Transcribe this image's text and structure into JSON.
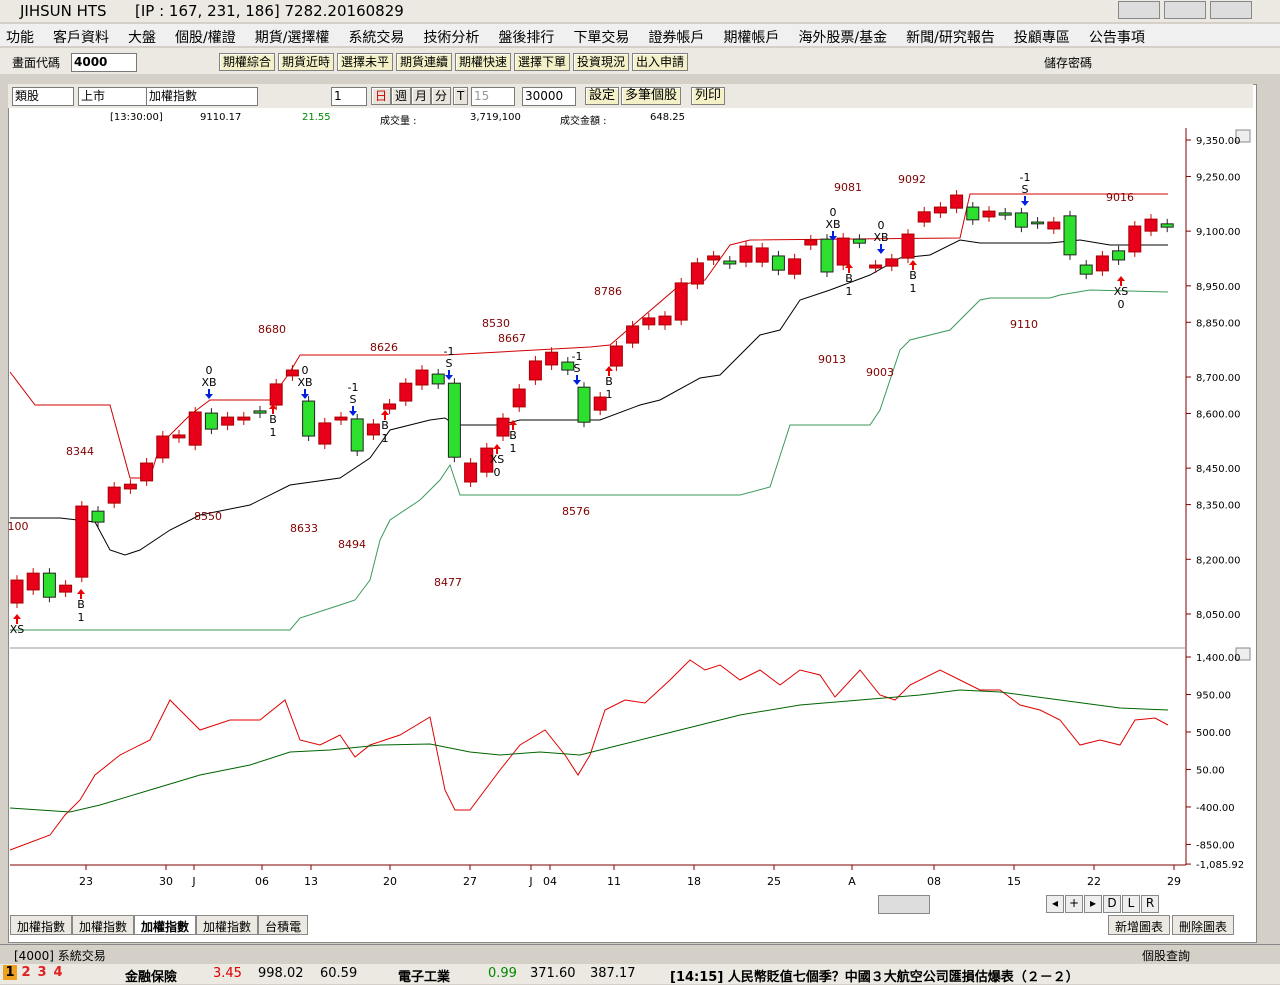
{
  "window": {
    "title": "JIHSUN HTS",
    "info": "[IP : 167, 231, 186] 7282.20160829"
  },
  "menu": [
    "功能",
    "客戶資料",
    "大盤",
    "個股/權證",
    "期貨/選擇權",
    "系統交易",
    "技術分析",
    "盤後排行",
    "下單交易",
    "證券帳戶",
    "期權帳戶",
    "海外股票/基金",
    "新聞/研究報告",
    "投顧專區",
    "公告事項"
  ],
  "toolbar": {
    "code_label": "畫面代碼",
    "code": "4000",
    "buttons": [
      "期權綜合",
      "期貨近時",
      "選擇未平",
      "期貨連續",
      "期權快速",
      "選擇下單",
      "投資現況",
      "出入申請"
    ],
    "save_password": "儲存密碼"
  },
  "controls": {
    "selects": [
      "類股",
      "上市",
      "加權指數"
    ],
    "period_value": "1",
    "periods": [
      "日",
      "週",
      "月",
      "分"
    ],
    "t": "T",
    "minutes": "15",
    "count": "30000",
    "buttons": [
      "設定",
      "多筆個股",
      "列印"
    ]
  },
  "quote": {
    "time": "[13:30:00]",
    "price": "9110.17",
    "change": "21.55",
    "volume_label": "成交量 :",
    "volume": "3,719,100",
    "amount_label": "成交金額 :",
    "amount": "648.25"
  },
  "chart": {
    "candles": [
      [
        8080,
        8143
      ],
      [
        8116,
        8162
      ],
      [
        8162,
        8096
      ],
      [
        8110,
        8129
      ],
      [
        8151,
        8346
      ],
      [
        8332,
        8302
      ],
      [
        8354,
        8398
      ],
      [
        8393,
        8406
      ],
      [
        8415,
        8464
      ],
      [
        8478,
        8538
      ],
      [
        8533,
        8541
      ],
      [
        8513,
        8604
      ],
      [
        8601,
        8557
      ],
      [
        8568,
        8590
      ],
      [
        8582,
        8590
      ],
      [
        8607,
        8601
      ],
      [
        8623,
        8681
      ],
      [
        8703,
        8719
      ],
      [
        8634,
        8538
      ],
      [
        8516,
        8574
      ],
      [
        8582,
        8590
      ],
      [
        8585,
        8497
      ],
      [
        8541,
        8571
      ],
      [
        8612,
        8626
      ],
      [
        8634,
        8683
      ],
      [
        8678,
        8719
      ],
      [
        8708,
        8681
      ],
      [
        8683,
        8480
      ],
      [
        8412,
        8464
      ],
      [
        8439,
        8505
      ],
      [
        8538,
        8587
      ],
      [
        8618,
        8667
      ],
      [
        8692,
        8744
      ],
      [
        8733,
        8768
      ],
      [
        8741,
        8719
      ],
      [
        8672,
        8576
      ],
      [
        8609,
        8645
      ],
      [
        8730,
        8785
      ],
      [
        8793,
        8840
      ],
      [
        8843,
        8862
      ],
      [
        8843,
        8867
      ],
      [
        8856,
        8958
      ],
      [
        8955,
        9013
      ],
      [
        9021,
        9032
      ],
      [
        9018,
        9010
      ],
      [
        9015,
        9059
      ],
      [
        9015,
        9054
      ],
      [
        9032,
        8993
      ],
      [
        8982,
        9024
      ],
      [
        9062,
        9076
      ],
      [
        9078,
        8988
      ],
      [
        9007,
        9081
      ],
      [
        9078,
        9067
      ],
      [
        8999,
        9007
      ],
      [
        9004,
        9024
      ],
      [
        9026,
        9092
      ],
      [
        9125,
        9153
      ],
      [
        9150,
        9166
      ],
      [
        9163,
        9199
      ],
      [
        9166,
        9131
      ],
      [
        9139,
        9155
      ],
      [
        9150,
        9144
      ],
      [
        9150,
        9111
      ],
      [
        9125,
        9120
      ],
      [
        9106,
        9125
      ],
      [
        9142,
        9035
      ],
      [
        9007,
        8982
      ],
      [
        8991,
        9032
      ],
      [
        9046,
        9021
      ],
      [
        9043,
        9114
      ],
      [
        9100,
        9133
      ],
      [
        9120,
        9111
      ]
    ],
    "price_ticks": [
      {
        "value": 9350,
        "label": "9,350.00"
      },
      {
        "value": 9250,
        "label": "9,250.00"
      },
      {
        "value": 9100,
        "label": "9,100.00"
      },
      {
        "value": 8950,
        "label": "8,950.00"
      },
      {
        "value": 8850,
        "label": "8,850.00"
      },
      {
        "value": 8700,
        "label": "8,700.00"
      },
      {
        "value": 8600,
        "label": "8,600.00"
      },
      {
        "value": 8450,
        "label": "8,450.00"
      },
      {
        "value": 8350,
        "label": "8,350.00"
      },
      {
        "value": 8200,
        "label": "8,200.00"
      },
      {
        "value": 8050,
        "label": "8,050.00"
      }
    ],
    "indicator_ticks": [
      {
        "value": 1400,
        "label": "1,400.00"
      },
      {
        "value": 950,
        "label": "950.00"
      },
      {
        "value": 500,
        "label": "500.00"
      },
      {
        "value": 50,
        "label": "50.00"
      },
      {
        "value": -400,
        "label": "-400.00"
      },
      {
        "value": -850,
        "label": "-850.00"
      },
      {
        "value": -1085.92,
        "label": "-1,085.92"
      }
    ],
    "x_labels": [
      "23",
      "30",
      "J",
      "06",
      "13",
      "20",
      "27",
      "J",
      "04",
      "11",
      "18",
      "25",
      "A",
      "08",
      "15",
      "22",
      "29"
    ],
    "annotations": [
      "100",
      "8344",
      "8550",
      "8633",
      "8494",
      "8477",
      "8680",
      "8626",
      "8530",
      "8667",
      "8576",
      "8786",
      "9081",
      "9092",
      "9013",
      "9003",
      "9110",
      "9016"
    ],
    "signals": [
      [
        "XS"
      ],
      [
        "B",
        "1"
      ],
      [
        "0",
        "XB"
      ],
      [
        "B",
        "1"
      ],
      [
        "0",
        "XB"
      ],
      [
        "-1",
        "S"
      ],
      [
        "B",
        "1"
      ],
      [
        "-1",
        "S"
      ],
      [
        "XS",
        "0"
      ],
      [
        "B",
        "1"
      ],
      [
        "-1",
        "S"
      ],
      [
        "B",
        "1"
      ],
      [
        "0",
        "XB"
      ],
      [
        "B",
        "1"
      ],
      [
        "0",
        "XB"
      ],
      [
        "B",
        "1"
      ],
      [
        "-1",
        "S"
      ],
      [
        "XS",
        "0"
      ]
    ]
  },
  "scroll_buttons": [
    "D",
    "L",
    "R"
  ],
  "tabs": [
    "加權指數",
    "加權指數",
    "加權指數",
    "加權指數",
    "台積電"
  ],
  "chart_buttons": [
    "新增圖表",
    "刪除圖表"
  ],
  "status": {
    "left": "[4000] 系統交易",
    "right": "個股查詢"
  },
  "ticker": {
    "pages": [
      "1",
      "2",
      "3",
      "4"
    ],
    "items": [
      {
        "name": "金融保險",
        "change": "3.45",
        "index": "998.02",
        "value": "60.59"
      },
      {
        "name": "電子工業",
        "change": "0.99",
        "index": "371.60",
        "value": "387.17"
      }
    ],
    "news": "[14:15] 人民幣貶值七個季？中國３大航空公司匯損估爆表（２－２）"
  }
}
